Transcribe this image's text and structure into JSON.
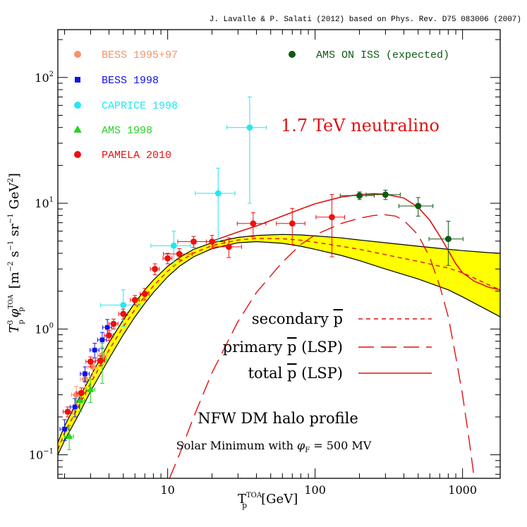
{
  "chart_data": {
    "type": "scatter",
    "credit": "J. Lavalle & P. Salati (2012) based on Phys. Rev. D75 083006 (2007)",
    "xlabel": "T",
    "xlabel_sub": "p",
    "xlabel_sup": "TOA",
    "xlabel_unit": "[GeV]",
    "ylabel_T": "T",
    "ylabel_T_sub": "p",
    "ylabel_T_sup": "3",
    "ylabel_phi": "φ",
    "ylabel_phi_sub": "p",
    "ylabel_phi_sup": "TOA",
    "ylabel_unit": "[m",
    "ylabel_unit_rest": " s",
    "ylabel_unit_rest2": " sr",
    "ylabel_unit_rest3": " GeV",
    "ylabel_exp1": "−2",
    "ylabel_exp2": "−1",
    "ylabel_exp3": "−1",
    "ylabel_exp4": "2",
    "ylabel_close": "]",
    "xscale": "log",
    "yscale": "log",
    "xlim": [
      1.8,
      1800
    ],
    "ylim": [
      0.065,
      240
    ],
    "x_ticks": [
      {
        "value": 10,
        "label": "10"
      },
      {
        "value": 100,
        "label": "100"
      },
      {
        "value": 1000,
        "label": "1000"
      }
    ],
    "y_ticks": [
      {
        "value": 0.1,
        "base": "10",
        "exp": "−1"
      },
      {
        "value": 1,
        "base": "10",
        "exp": "0"
      },
      {
        "value": 10,
        "base": "10",
        "exp": "1"
      },
      {
        "value": 100,
        "base": "10",
        "exp": "2"
      }
    ],
    "callout": "1.7 TeV neutralino",
    "curve_legend": [
      {
        "label": "secondary ",
        "sym": "p",
        "suffix": "",
        "dash": "6,5"
      },
      {
        "label": "primary ",
        "sym": "p",
        "suffix": " (LSP)",
        "dash": "22,10"
      },
      {
        "label": "total ",
        "sym": "p",
        "suffix": " (LSP)",
        "dash": ""
      }
    ],
    "annotation_1": "NFW DM halo profile",
    "annotation_2_prefix": "Solar Minimum with ",
    "annotation_2_phi": "φ",
    "annotation_2_sub": "F",
    "annotation_2_suffix": " = 500 MV",
    "band": {
      "color": "#ffff00",
      "upper": [
        [
          1.8,
          0.125
        ],
        [
          2,
          0.17
        ],
        [
          2.5,
          0.28
        ],
        [
          3,
          0.42
        ],
        [
          4,
          0.78
        ],
        [
          5,
          1.18
        ],
        [
          6,
          1.62
        ],
        [
          7,
          2.05
        ],
        [
          8,
          2.45
        ],
        [
          10,
          3.15
        ],
        [
          12,
          3.7
        ],
        [
          15,
          4.3
        ],
        [
          20,
          4.85
        ],
        [
          30,
          5.35
        ],
        [
          40,
          5.55
        ],
        [
          60,
          5.65
        ],
        [
          80,
          5.6
        ],
        [
          100,
          5.5
        ],
        [
          150,
          5.3
        ],
        [
          200,
          5.1
        ],
        [
          300,
          4.85
        ],
        [
          500,
          4.55
        ],
        [
          800,
          4.3
        ],
        [
          1000,
          4.2
        ],
        [
          1500,
          4.05
        ],
        [
          1800,
          4.0
        ]
      ],
      "lower": [
        [
          1.8,
          0.1
        ],
        [
          2,
          0.13
        ],
        [
          2.5,
          0.21
        ],
        [
          3,
          0.32
        ],
        [
          4,
          0.58
        ],
        [
          5,
          0.9
        ],
        [
          6,
          1.25
        ],
        [
          7,
          1.6
        ],
        [
          8,
          1.95
        ],
        [
          10,
          2.6
        ],
        [
          12,
          3.15
        ],
        [
          15,
          3.75
        ],
        [
          20,
          4.35
        ],
        [
          30,
          4.85
        ],
        [
          40,
          4.95
        ],
        [
          60,
          4.8
        ],
        [
          80,
          4.55
        ],
        [
          100,
          4.3
        ],
        [
          150,
          3.85
        ],
        [
          200,
          3.5
        ],
        [
          300,
          3.0
        ],
        [
          500,
          2.5
        ],
        [
          800,
          2.05
        ],
        [
          1000,
          1.8
        ],
        [
          1500,
          1.4
        ],
        [
          1800,
          1.25
        ]
      ]
    },
    "secondary_curve": [
      [
        1.8,
        0.11
      ],
      [
        2,
        0.15
      ],
      [
        2.5,
        0.245
      ],
      [
        3,
        0.37
      ],
      [
        4,
        0.68
      ],
      [
        5,
        1.04
      ],
      [
        6,
        1.43
      ],
      [
        7,
        1.82
      ],
      [
        8,
        2.2
      ],
      [
        10,
        2.88
      ],
      [
        12,
        3.42
      ],
      [
        15,
        4.02
      ],
      [
        20,
        4.6
      ],
      [
        30,
        5.1
      ],
      [
        40,
        5.25
      ],
      [
        60,
        5.22
      ],
      [
        80,
        5.08
      ],
      [
        100,
        4.9
      ],
      [
        150,
        4.55
      ],
      [
        200,
        4.3
      ],
      [
        300,
        3.9
      ],
      [
        500,
        3.45
      ],
      [
        800,
        3.05
      ],
      [
        1000,
        2.8
      ],
      [
        1500,
        2.25
      ],
      [
        1800,
        2.05
      ]
    ],
    "primary_curve": [
      [
        10.3,
        0.065
      ],
      [
        12,
        0.1
      ],
      [
        15,
        0.2
      ],
      [
        20,
        0.45
      ],
      [
        30,
        1.15
      ],
      [
        40,
        1.95
      ],
      [
        60,
        3.4
      ],
      [
        80,
        4.7
      ],
      [
        100,
        5.6
      ],
      [
        150,
        6.9
      ],
      [
        200,
        7.6
      ],
      [
        250,
        8.0
      ],
      [
        300,
        8.1
      ],
      [
        350,
        7.9
      ],
      [
        400,
        7.3
      ],
      [
        500,
        5.6
      ],
      [
        600,
        3.7
      ],
      [
        700,
        2.2
      ],
      [
        800,
        1.25
      ],
      [
        900,
        0.6
      ],
      [
        1000,
        0.3
      ],
      [
        1100,
        0.14
      ],
      [
        1200,
        0.065
      ]
    ],
    "total_curve": [
      [
        20,
        5.0
      ],
      [
        30,
        5.9
      ],
      [
        40,
        6.6
      ],
      [
        60,
        7.9
      ],
      [
        80,
        9.0
      ],
      [
        100,
        9.9
      ],
      [
        150,
        11.2
      ],
      [
        200,
        11.7
      ],
      [
        250,
        11.9
      ],
      [
        300,
        11.8
      ],
      [
        400,
        11.0
      ],
      [
        500,
        9.3
      ],
      [
        600,
        7.3
      ],
      [
        700,
        5.5
      ],
      [
        800,
        4.2
      ],
      [
        900,
        3.3
      ],
      [
        1000,
        2.8
      ],
      [
        1200,
        2.4
      ],
      [
        1500,
        2.15
      ],
      [
        1800,
        2.05
      ]
    ],
    "series": [
      {
        "name": "BESS 1995+97",
        "marker": "circle",
        "color": "#f4946a",
        "points": [
          [
            2.4,
            0.3,
            0.05
          ],
          [
            2.75,
            0.4,
            0.06
          ],
          [
            3.1,
            0.5,
            0.08
          ],
          [
            3.6,
            0.62,
            0.1
          ]
        ]
      },
      {
        "name": "BESS 1998",
        "marker": "square",
        "color": "#1010e8",
        "points": [
          [
            2.0,
            0.16,
            0.03
          ],
          [
            2.35,
            0.24,
            0.04
          ],
          [
            2.75,
            0.44,
            0.06
          ],
          [
            3.2,
            0.68,
            0.09
          ],
          [
            3.6,
            0.82,
            0.12
          ],
          [
            3.9,
            1.03,
            0.16
          ]
        ]
      },
      {
        "name": "CAPRICE 1998",
        "marker": "circle",
        "color": "#22e8f0",
        "points": [
          [
            5.0,
            1.55,
            0.5
          ],
          [
            11.0,
            4.6,
            1.4
          ],
          [
            22.0,
            12.0,
            7.0
          ],
          [
            36.0,
            40.0,
            30.0
          ]
        ]
      },
      {
        "name": "AMS 1998",
        "marker": "triangle",
        "color": "#22d422",
        "points": [
          [
            2.15,
            0.14,
            0.03
          ],
          [
            2.55,
            0.27,
            0.05
          ],
          [
            3.0,
            0.33,
            0.07
          ],
          [
            3.6,
            0.57,
            0.2
          ]
        ]
      },
      {
        "name": "PAMELA 2010",
        "marker": "circle",
        "color": "#ee1010",
        "points": [
          [
            2.1,
            0.22,
            0.02
          ],
          [
            2.6,
            0.31,
            0.03
          ],
          [
            3.0,
            0.55,
            0.05
          ],
          [
            3.5,
            0.56,
            0.05
          ],
          [
            4.0,
            0.89,
            0.08
          ],
          [
            4.3,
            1.1,
            0.1
          ],
          [
            5.0,
            1.32,
            0.12
          ],
          [
            6.0,
            1.7,
            0.15
          ],
          [
            7.0,
            1.9,
            0.2
          ],
          [
            8.2,
            3.0,
            0.3
          ],
          [
            10.0,
            3.65,
            0.35
          ],
          [
            12.0,
            3.95,
            0.4
          ],
          [
            15.0,
            4.95,
            0.5
          ],
          [
            20.0,
            4.95,
            0.6
          ],
          [
            26.0,
            4.5,
            0.8
          ],
          [
            38.0,
            6.9,
            1.5
          ],
          [
            70.0,
            6.9,
            2.2
          ],
          [
            130.0,
            7.75,
            4.0
          ]
        ]
      },
      {
        "name": "AMS ON ISS (expected)",
        "marker": "circle",
        "color": "#0e5a14",
        "points": [
          [
            200,
            11.5,
            0.8
          ],
          [
            300,
            11.7,
            1.0
          ],
          [
            500,
            9.5,
            1.6
          ],
          [
            800,
            5.2,
            2.0
          ]
        ]
      }
    ]
  }
}
